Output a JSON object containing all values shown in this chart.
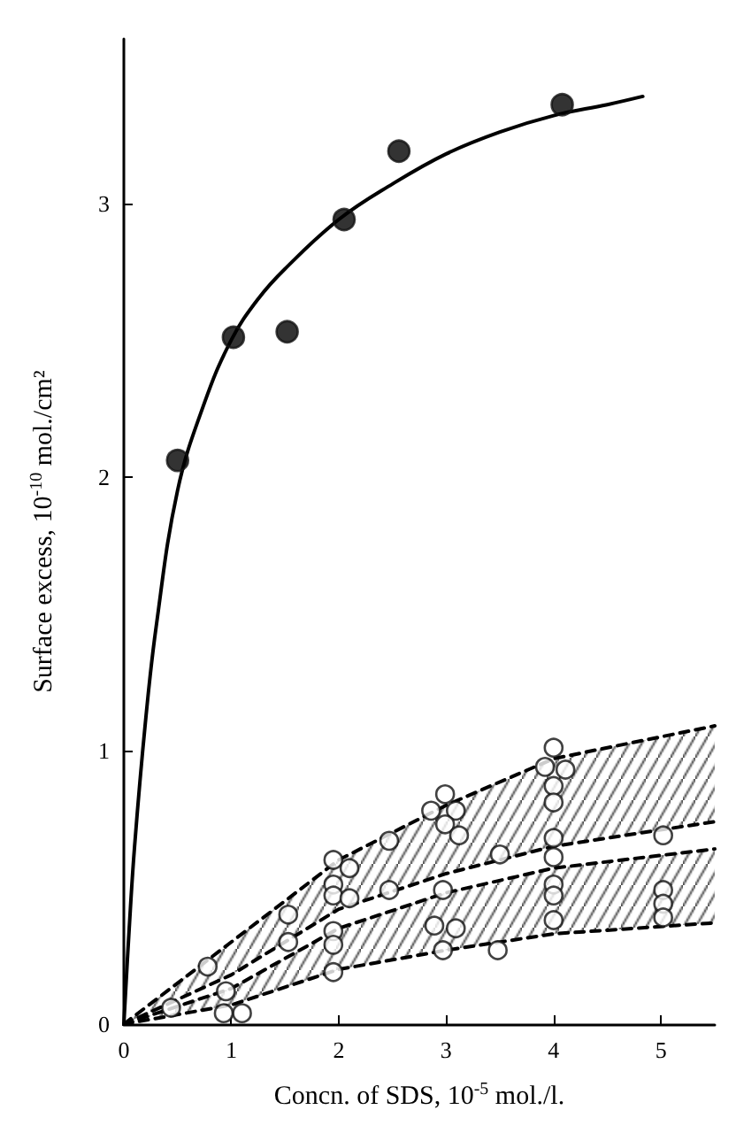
{
  "chart_data": {
    "type": "scatter",
    "xlabel": "Concn. of SDS, 10$^{-5}$ mol./l.",
    "ylabel": "Surface excess, 10$^{-10}$ mol./cm²",
    "xlim": [
      0,
      5.5
    ],
    "xticks": [
      0,
      1,
      2,
      3,
      4,
      5
    ],
    "ylim": [
      0,
      3.6
    ],
    "yticks": [
      0,
      1,
      2,
      3
    ],
    "grid": false,
    "marker": "circle",
    "series": [
      {
        "type": "line",
        "marker": "none",
        "line_style": "dashed",
        "color": "#000000",
        "x": [
          0,
          1,
          2,
          3,
          4,
          5.5
        ],
        "values": [
          0,
          0.3,
          0.6,
          0.8,
          0.97,
          1.09
        ]
      },
      {
        "type": "line",
        "marker": "none",
        "line_style": "dashed",
        "color": "#000000",
        "x": [
          0,
          1,
          2,
          3,
          4,
          5.5
        ],
        "values": [
          0,
          0.18,
          0.42,
          0.55,
          0.65,
          0.74
        ]
      },
      {
        "type": "line",
        "marker": "none",
        "line_style": "dashed",
        "color": "#000000",
        "x": [
          0,
          1,
          2,
          3,
          4,
          5.5
        ],
        "values": [
          0,
          0.13,
          0.35,
          0.48,
          0.57,
          0.64
        ]
      },
      {
        "type": "line",
        "marker": "none",
        "line_style": "dashed",
        "color": "#000000",
        "x": [
          0,
          1,
          2,
          3,
          4,
          5.5
        ],
        "values": [
          0,
          0.07,
          0.2,
          0.27,
          0.33,
          0.37
        ]
      },
      {
        "type": "line",
        "marker": "none",
        "line_style": "solid",
        "color": "#000000",
        "x": [
          0,
          0.05,
          0.1,
          0.2,
          0.3,
          0.5,
          0.75,
          1,
          1.25,
          1.5,
          2,
          2.5,
          3,
          3.5,
          4,
          4.5,
          4.83
        ],
        "values": [
          0,
          0.35,
          0.65,
          1.1,
          1.45,
          1.95,
          2.27,
          2.5,
          2.65,
          2.76,
          2.94,
          3.07,
          3.18,
          3.26,
          3.32,
          3.36,
          3.39
        ]
      },
      {
        "color": "#000000",
        "x": [
          0.5,
          1.02,
          1.52,
          2.05,
          2.56,
          4.08
        ],
        "values": [
          2.06,
          2.51,
          2.53,
          2.94,
          3.19,
          3.36
        ]
      },
      {
        "color": "#ffffff",
        "x": [
          0.44,
          0.78,
          0.95,
          0.93,
          1.1,
          1.53,
          1.53,
          1.95,
          2.1,
          1.95,
          1.95,
          2.1,
          1.95,
          1.95,
          1.95,
          2.47,
          2.47,
          2.99,
          2.86,
          3.09,
          2.99,
          3.12,
          2.97,
          2.89,
          3.09,
          2.97,
          3.5,
          3.48,
          4.0,
          3.92,
          4.11,
          4.0,
          4.0,
          4.0,
          4.0,
          4.0,
          4.0,
          4.0,
          5.02,
          5.02,
          5.02,
          5.02
        ],
        "values": [
          0.06,
          0.21,
          0.12,
          0.04,
          0.04,
          0.4,
          0.3,
          0.6,
          0.57,
          0.51,
          0.47,
          0.46,
          0.34,
          0.29,
          0.19,
          0.67,
          0.49,
          0.84,
          0.78,
          0.78,
          0.73,
          0.69,
          0.49,
          0.36,
          0.35,
          0.27,
          0.62,
          0.27,
          1.01,
          0.94,
          0.93,
          0.87,
          0.81,
          0.68,
          0.61,
          0.51,
          0.47,
          0.38,
          0.69,
          0.49,
          0.44,
          0.39
        ]
      }
    ]
  }
}
